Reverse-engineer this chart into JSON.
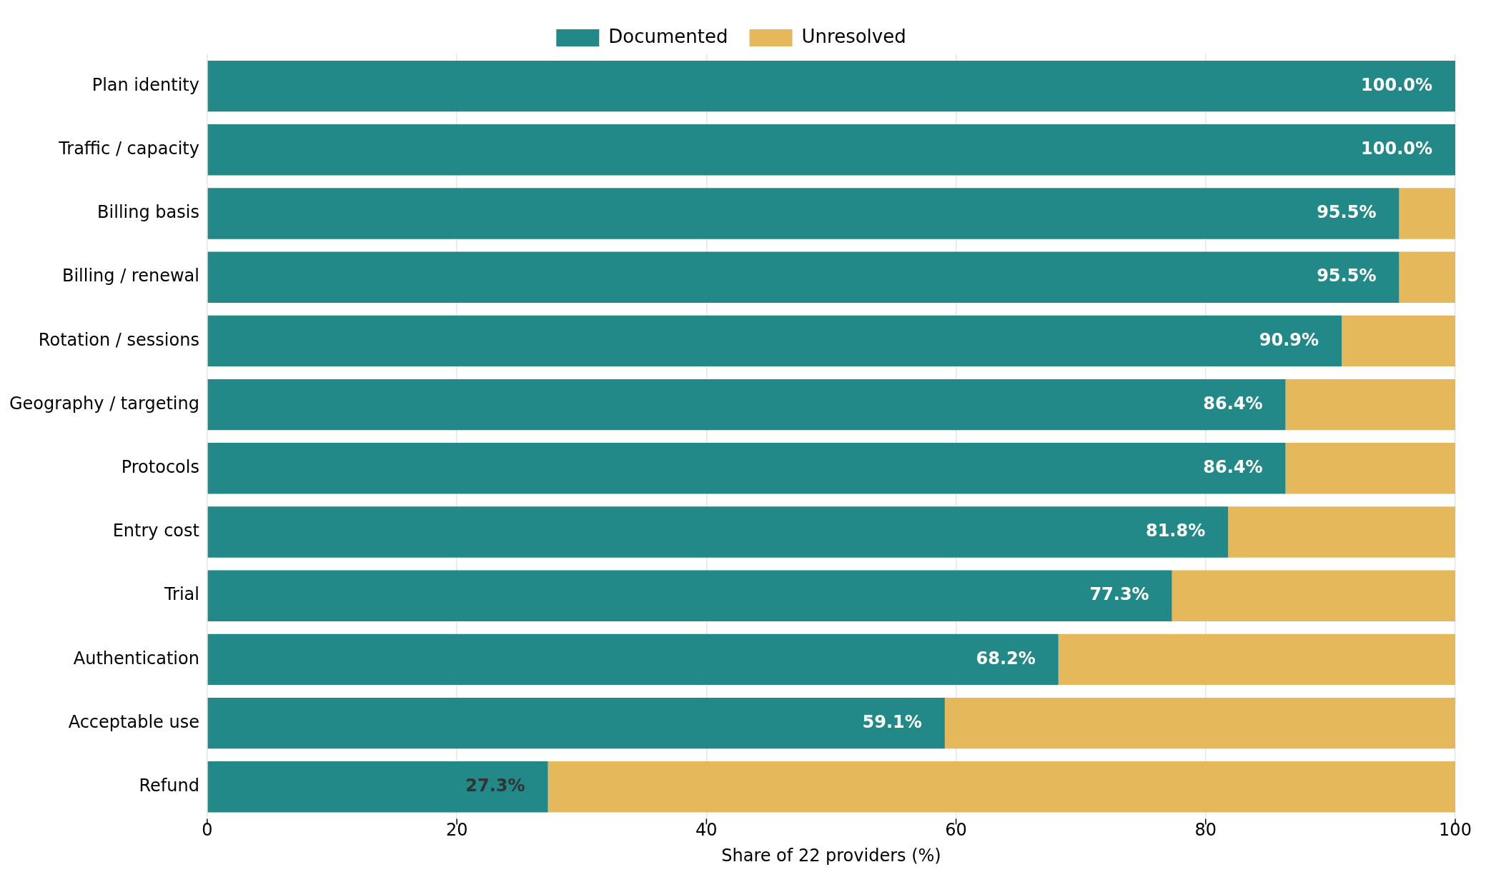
{
  "chart_data": {
    "type": "bar",
    "orientation": "horizontal",
    "stacked": true,
    "xlabel": "Share of 22 providers (%)",
    "categories": [
      "Plan identity",
      "Traffic / capacity",
      "Billing basis",
      "Billing / renewal",
      "Rotation / sessions",
      "Geography / targeting",
      "Protocols",
      "Entry cost",
      "Trial",
      "Authentication",
      "Acceptable use",
      "Refund"
    ],
    "series": [
      {
        "name": "Documented",
        "color": "#238888",
        "values": [
          100,
          100,
          95.5,
          95.5,
          90.9,
          86.4,
          86.4,
          81.8,
          77.3,
          68.2,
          59.1,
          27.3
        ],
        "value_labels": [
          "100.0%",
          "100.0%",
          "95.5%",
          "95.5%",
          "90.9%",
          "86.4%",
          "86.4%",
          "81.8%",
          "77.3%",
          "68.2%",
          "59.1%",
          "27.3%"
        ]
      },
      {
        "name": "Unresolved",
        "color": "#e6b85c",
        "values": [
          0,
          0,
          4.5,
          4.5,
          9.1,
          13.6,
          13.6,
          18.2,
          22.7,
          31.8,
          40.9,
          72.7
        ]
      }
    ],
    "xlim": [
      0,
      100
    ],
    "xticks": [
      0,
      20,
      40,
      60,
      80,
      100
    ],
    "grid": "x",
    "legend": "top"
  }
}
